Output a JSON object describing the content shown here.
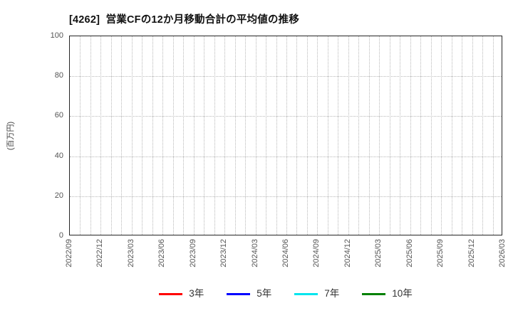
{
  "chart_data": {
    "type": "line",
    "title": "[4262]  営業CFの12か月移動合計の平均値の推移",
    "ylabel": "(百万円)",
    "ylim": [
      0,
      100
    ],
    "yticks": [
      0,
      20,
      40,
      60,
      80,
      100
    ],
    "x_tick_labels": [
      "2022/09",
      "2022/12",
      "2023/03",
      "2023/06",
      "2023/09",
      "2023/12",
      "2024/03",
      "2024/06",
      "2024/09",
      "2024/12",
      "2025/03",
      "2025/06",
      "2025/09",
      "2025/12",
      "2026/03"
    ],
    "x_total_months": 42,
    "x_label_every_n_months": 3,
    "x_minor_gridlines": "monthly",
    "grid": true,
    "grid_style": "dotted",
    "legend_position": "bottom",
    "plot_is_empty": true,
    "series": [
      {
        "name": "3年",
        "color": "#ff0000",
        "values": []
      },
      {
        "name": "5年",
        "color": "#0000ff",
        "values": []
      },
      {
        "name": "7年",
        "color": "#00e5ee",
        "values": []
      },
      {
        "name": "10年",
        "color": "#008000",
        "values": []
      }
    ]
  },
  "colors": {
    "gridline": "#b8b8b8",
    "spine": "#262626",
    "tick_label": "#555555",
    "title": "#111111"
  }
}
